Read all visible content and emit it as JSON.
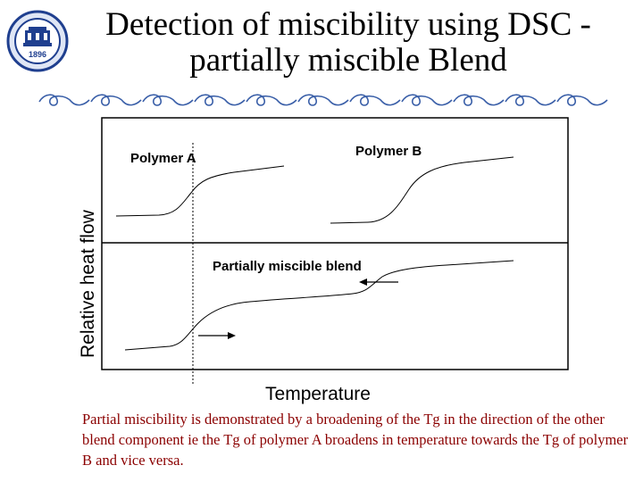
{
  "slide": {
    "title": "Detection of miscibility using DSC - partially miscible Blend",
    "logo_text": "1896",
    "caption": "Partial miscibility is demonstrated by a broadening of the Tg in the direction of the other blend component ie the Tg of  polymer A broadens in temperature towards the Tg of polymer B  and vice versa."
  },
  "diagram": {
    "ylabel": "Relative heat flow",
    "xlabel": "Temperature",
    "label_a": "Polymer A",
    "label_b": "Polymer B",
    "label_blend": "Partially miscible blend"
  },
  "colors": {
    "caption": "#8b0000",
    "logo": "#1f3f8f",
    "divider": "#3a5fa8"
  }
}
